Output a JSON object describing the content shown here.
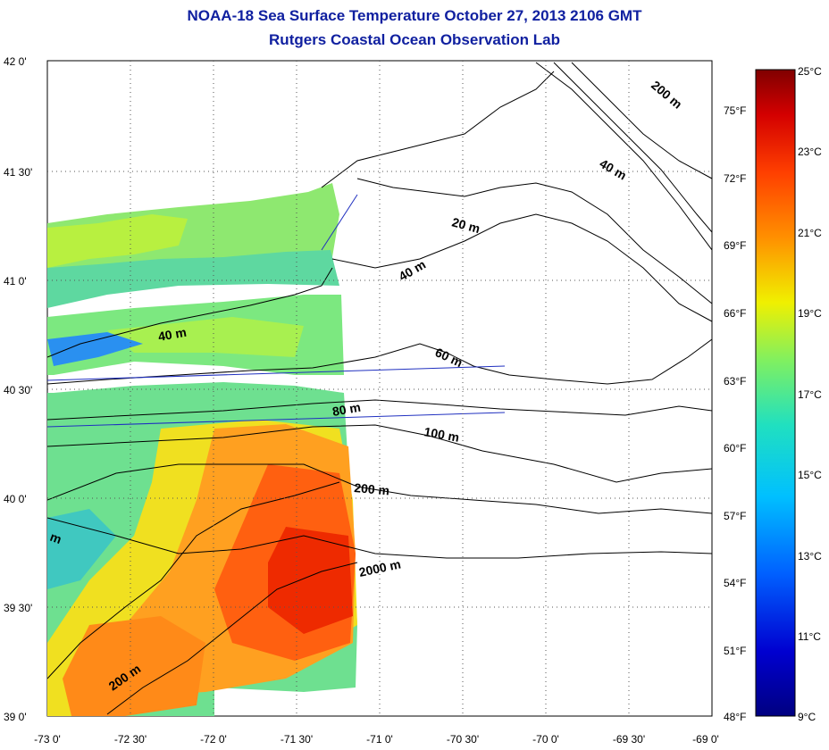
{
  "header": {
    "title": "NOAA-18 Sea Surface Temperature October 27, 2013 2106 GMT",
    "subtitle": "Rutgers Coastal Ocean Observation Lab"
  },
  "map": {
    "lon_ticks": [
      "-73 0'",
      "-72 30'",
      "-72 0'",
      "-71 30'",
      "-71 0'",
      "-70 30'",
      "-70 0'",
      "-69 30'",
      "-69 0'"
    ],
    "lat_ticks": [
      "42 0'",
      "41 30'",
      "41 0'",
      "40 30'",
      "40 0'",
      "39 30'",
      "39 0'"
    ],
    "lon_range": [
      -73,
      -69
    ],
    "lat_range": [
      39,
      42
    ],
    "contour_labels": [
      "200 m",
      "40 m",
      "20 m",
      "40 m",
      "40 m",
      "60 m",
      "80 m",
      "100 m",
      "200 m",
      "2000 m",
      "200 m",
      "m"
    ]
  },
  "colorbar": {
    "celsius_labels": [
      "25°C",
      "23°C",
      "21°C",
      "19°C",
      "17°C",
      "15°C",
      "13°C",
      "11°C",
      "9°C"
    ],
    "fahrenheit_labels": [
      "75°F",
      "72°F",
      "69°F",
      "66°F",
      "63°F",
      "60°F",
      "57°F",
      "54°F",
      "51°F",
      "48°F"
    ],
    "celsius_range": [
      9,
      25
    ],
    "colors": [
      "#800000",
      "#d40000",
      "#ff4000",
      "#ff9000",
      "#f0f000",
      "#80f060",
      "#20e0c0",
      "#00c0ff",
      "#0060ff",
      "#0000c0",
      "#000080"
    ]
  }
}
